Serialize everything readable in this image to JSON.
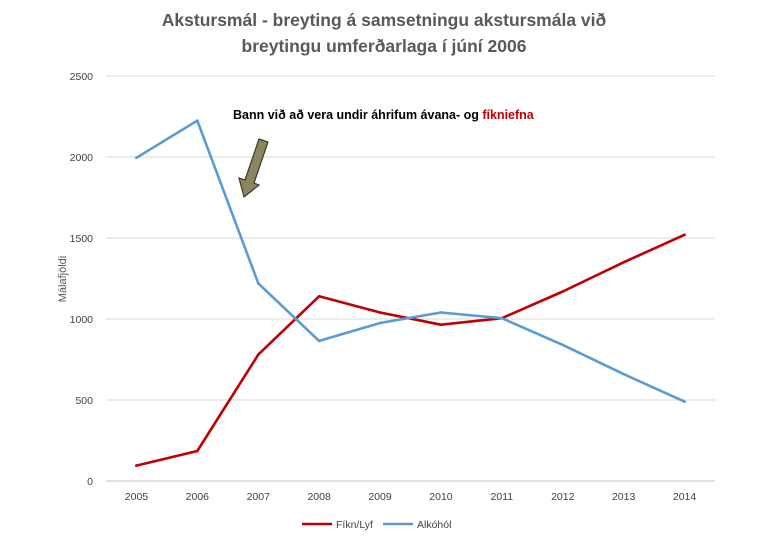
{
  "chart_data": {
    "type": "line",
    "title_line1": "Akstursmál - breyting á samsetningu akstursmála við",
    "title_line2": "breytingu umferðarlaga í júní 2006",
    "ylabel": "Málafjöldi",
    "xlabel": "",
    "categories": [
      "2005",
      "2006",
      "2007",
      "2008",
      "2009",
      "2010",
      "2011",
      "2012",
      "2013",
      "2014"
    ],
    "ylim": [
      0,
      2500
    ],
    "yticks": [
      0,
      500,
      1000,
      1500,
      2000,
      2500
    ],
    "grid": "horizontal",
    "legend_position": "bottom",
    "series": [
      {
        "name": "Fíkn/Lyf",
        "color": "#C00000",
        "values": [
          95,
          185,
          780,
          1140,
          1040,
          965,
          1005,
          1170,
          1350,
          1520
        ]
      },
      {
        "name": "Alkóhól",
        "color": "#5B9BD5",
        "values": [
          1995,
          2225,
          1220,
          865,
          975,
          1040,
          1005,
          840,
          660,
          490
        ]
      }
    ],
    "annotation": {
      "text_part1": "Bann við að vera undir áhrifum ávana- og ",
      "text_part2": "fíkniefna",
      "color_part1": "#000000",
      "color_part2": "#C00000",
      "arrow_color": "#8B8560",
      "arrow_border": "#3A3A2A"
    }
  }
}
